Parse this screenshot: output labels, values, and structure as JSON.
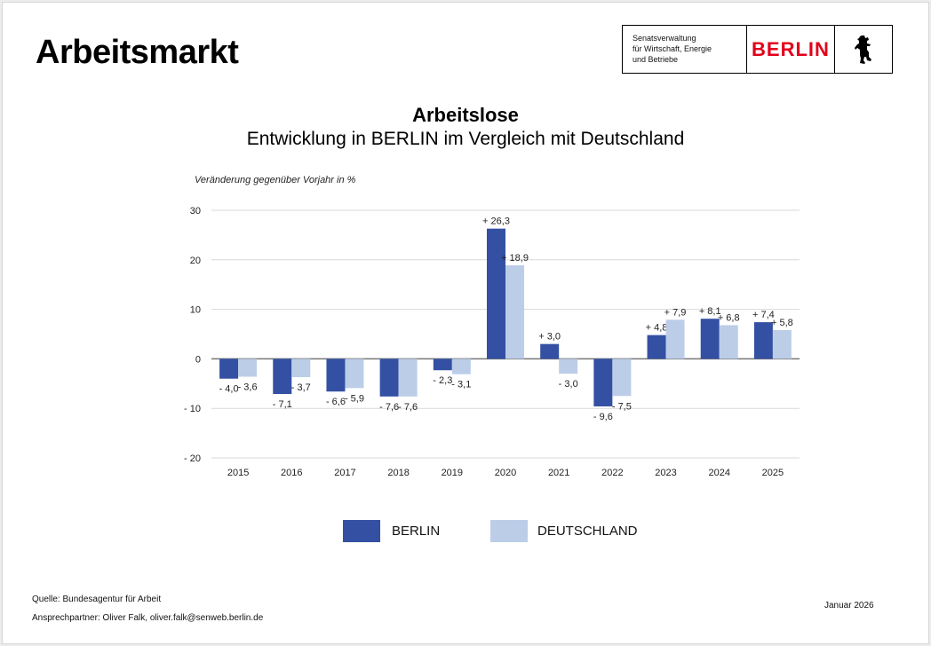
{
  "header": {
    "page_title": "Arbeitsmarkt",
    "logo": {
      "org_lines": [
        "Senatsverwaltung",
        "für Wirtschaft, Energie",
        "und Betriebe"
      ],
      "wordmark": "BERLIN",
      "wordmark_color": "#e2001a",
      "emblem_icon": "berlin-bear-icon"
    }
  },
  "chart_data": {
    "type": "bar",
    "title": "Arbeitslose",
    "subtitle": "Entwicklung in BERLIN im Vergleich mit Deutschland",
    "ylabel": "Veränderung gegenüber Vorjahr in %",
    "xlabel": "",
    "ylim": [
      -20,
      30
    ],
    "yticks": [
      30,
      20,
      10,
      0,
      -10,
      -20
    ],
    "ytick_labels": [
      "30",
      "20",
      "10",
      "0",
      "- 10",
      "- 20"
    ],
    "grid": true,
    "legend_position": "bottom",
    "categories": [
      "2015",
      "2016",
      "2017",
      "2018",
      "2019",
      "2020",
      "2021",
      "2022",
      "2023",
      "2024",
      "2025"
    ],
    "series": [
      {
        "name": "BERLIN",
        "color": "#3350a3",
        "values": [
          -4.0,
          -7.1,
          -6.6,
          -7.6,
          -2.3,
          26.3,
          3.0,
          -9.6,
          4.8,
          8.1,
          7.4
        ],
        "labels": [
          "- 4,0",
          "- 7,1",
          "- 6,6",
          "- 7,6",
          "- 2,3",
          "+ 26,3",
          "+ 3,0",
          "- 9,6",
          "+ 4,8",
          "+ 8,1",
          "+ 7,4"
        ]
      },
      {
        "name": "DEUTSCHLAND",
        "color": "#bccde8",
        "values": [
          -3.6,
          -3.7,
          -5.9,
          -7.6,
          -3.1,
          18.9,
          -3.0,
          -7.5,
          7.9,
          6.8,
          5.8
        ],
        "labels": [
          "- 3,6",
          "- 3,7",
          "- 5,9",
          "- 7,6",
          "- 3,1",
          "+ 18,9",
          "- 3,0",
          "- 7,5",
          "+ 7,9",
          "+ 6,8",
          "+ 5,8"
        ]
      }
    ]
  },
  "footer": {
    "source": "Quelle: Bundesagentur für Arbeit",
    "contact": "Ansprechpartner: Oliver Falk, oliver.falk@senweb.berlin.de",
    "date": "Januar 2026"
  }
}
